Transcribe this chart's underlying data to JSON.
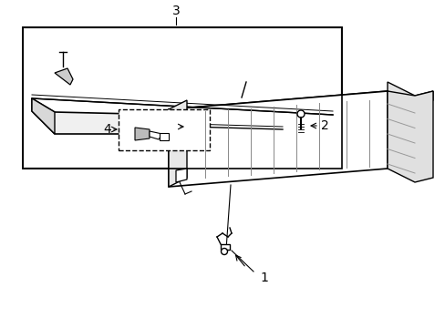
{
  "background_color": "#ffffff",
  "line_color": "#000000",
  "gray_fill": "#e8e8e8",
  "light_gray": "#f0f0f0",
  "fig_width": 4.89,
  "fig_height": 3.6,
  "dpi": 100,
  "label_fontsize": 10
}
